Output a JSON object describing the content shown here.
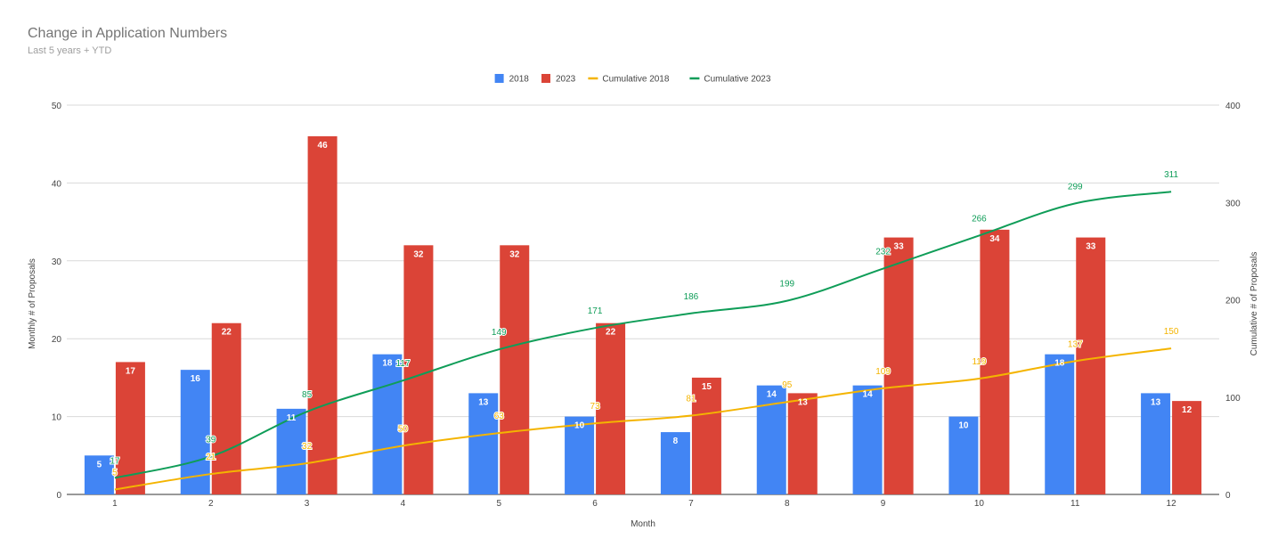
{
  "chart_data": {
    "type": "bar",
    "title": "Change in Application Numbers",
    "subtitle": "Last 5 years + YTD",
    "xlabel": "Month",
    "ylabel": "Monthly # of Proposals",
    "y2label": "Cumulative # of Proposals",
    "categories": [
      "1",
      "2",
      "3",
      "4",
      "5",
      "6",
      "7",
      "8",
      "9",
      "10",
      "11",
      "12"
    ],
    "ylim": [
      0,
      50
    ],
    "y2lim": [
      0,
      400
    ],
    "yticks": [
      0,
      10,
      20,
      30,
      40,
      50
    ],
    "y2ticks": [
      0,
      100,
      200,
      300,
      400
    ],
    "grid": true,
    "legend_position": "top",
    "bar_series": [
      {
        "name": "2018",
        "color": "#4285f4",
        "values": [
          5,
          16,
          11,
          18,
          13,
          10,
          8,
          14,
          14,
          10,
          18,
          13
        ]
      },
      {
        "name": "2023",
        "color": "#db4437",
        "values": [
          17,
          22,
          46,
          32,
          32,
          22,
          15,
          13,
          33,
          34,
          33,
          12
        ]
      }
    ],
    "line_series": [
      {
        "name": "Cumulative 2018",
        "color": "#f4b400",
        "axis": "right",
        "values": [
          5,
          21,
          32,
          50,
          63,
          73,
          81,
          95,
          109,
          119,
          137,
          150
        ]
      },
      {
        "name": "Cumulative 2023",
        "color": "#0f9d58",
        "axis": "right",
        "values": [
          17,
          39,
          85,
          117,
          149,
          171,
          186,
          199,
          232,
          266,
          299,
          311
        ]
      }
    ]
  }
}
